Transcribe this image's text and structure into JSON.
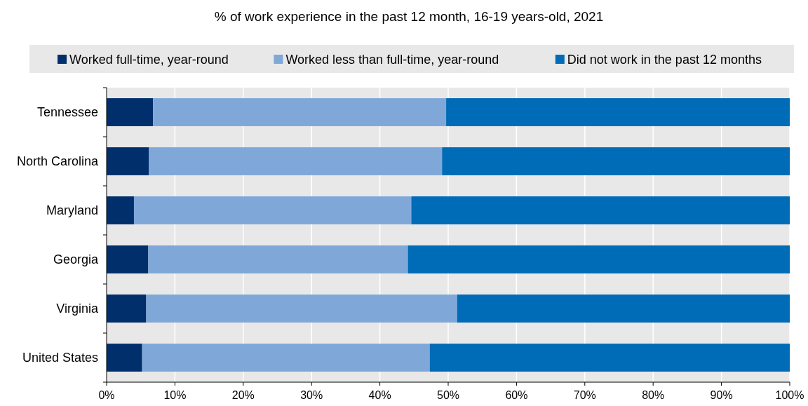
{
  "chart_data": {
    "type": "bar",
    "orientation": "horizontal",
    "stacked": true,
    "title": "% of work experience in the past 12 month, 16-19 years-old, 2021",
    "categories": [
      "Tennessee",
      "North Carolina",
      "Maryland",
      "Georgia",
      "Virginia",
      "United States"
    ],
    "series": [
      {
        "name": "Worked full-time, year-round",
        "color": "#002f6c",
        "values": [
          6.8,
          6.2,
          4.0,
          6.1,
          5.8,
          5.2
        ]
      },
      {
        "name": "Worked less than full-time, year-round",
        "color": "#7fa8d9",
        "values": [
          42.9,
          42.9,
          40.6,
          38.0,
          45.5,
          42.1
        ]
      },
      {
        "name": "Did not work in the past 12 months",
        "color": "#006bb6",
        "values": [
          50.3,
          50.9,
          55.4,
          55.9,
          48.7,
          52.7
        ]
      }
    ],
    "xlim": [
      0,
      100
    ],
    "xticks": [
      {
        "value": 0,
        "label": "0%"
      },
      {
        "value": 10,
        "label": "10%"
      },
      {
        "value": 20,
        "label": "20%"
      },
      {
        "value": 30,
        "label": "30%"
      },
      {
        "value": 40,
        "label": "40%"
      },
      {
        "value": 50,
        "label": "50%"
      },
      {
        "value": 60,
        "label": "60%"
      },
      {
        "value": 70,
        "label": "70%"
      },
      {
        "value": 80,
        "label": "80%"
      },
      {
        "value": 90,
        "label": "90%"
      },
      {
        "value": 100,
        "label": "100%"
      }
    ],
    "grid": "x",
    "legend": "top"
  }
}
